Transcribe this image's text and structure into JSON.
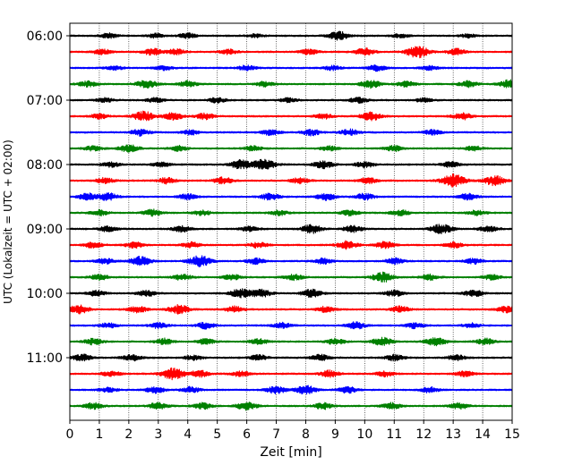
{
  "chart_data": {
    "type": "line",
    "title": "",
    "xlabel": "Zeit  [min]",
    "ylabel": "UTC (Lokalzeit = UTC + 02:00)",
    "xlim": [
      0,
      15
    ],
    "x_ticks": [
      0,
      1,
      2,
      3,
      4,
      5,
      6,
      7,
      8,
      9,
      10,
      11,
      12,
      13,
      14,
      15
    ],
    "x_tick_labels": [
      "0",
      "1",
      "2",
      "3",
      "4",
      "5",
      "6",
      "7",
      "8",
      "9",
      "10",
      "11",
      "12",
      "13",
      "14",
      "15"
    ],
    "y_tick_labels": [
      "06:00",
      "07:00",
      "08:00",
      "09:00",
      "10:00",
      "11:00"
    ],
    "y_tick_rows": [
      0,
      4,
      8,
      12,
      16,
      20
    ],
    "grid": "x-dotted",
    "trace_colors": [
      "#000000",
      "#ff0000",
      "#0000ff",
      "#008000"
    ],
    "traces": [
      {
        "start": "06:00",
        "bursts": [
          [
            1.3,
            0.8
          ],
          [
            2.9,
            0.7
          ],
          [
            4.0,
            0.8
          ],
          [
            6.3,
            0.6
          ],
          [
            9.1,
            1.4
          ],
          [
            11.2,
            0.6
          ],
          [
            13.5,
            0.6
          ]
        ]
      },
      {
        "start": "06:15",
        "bursts": [
          [
            1.1,
            0.9
          ],
          [
            2.8,
            1.1
          ],
          [
            3.6,
            0.9
          ],
          [
            5.4,
            0.8
          ],
          [
            8.1,
            0.9
          ],
          [
            10.0,
            1.2
          ],
          [
            11.8,
            1.9
          ],
          [
            13.1,
            1.0
          ]
        ]
      },
      {
        "start": "06:30",
        "bursts": [
          [
            1.5,
            0.7
          ],
          [
            3.2,
            0.8
          ],
          [
            6.0,
            0.8
          ],
          [
            8.9,
            0.7
          ],
          [
            10.4,
            0.9
          ],
          [
            12.2,
            0.7
          ]
        ]
      },
      {
        "start": "06:45",
        "bursts": [
          [
            0.6,
            0.9
          ],
          [
            2.6,
            1.4
          ],
          [
            4.0,
            1.0
          ],
          [
            6.6,
            0.8
          ],
          [
            10.2,
            1.3
          ],
          [
            11.4,
            0.9
          ],
          [
            13.5,
            1.0
          ],
          [
            14.9,
            1.3
          ]
        ]
      },
      {
        "start": "07:00",
        "bursts": [
          [
            1.2,
            0.7
          ],
          [
            2.9,
            0.8
          ],
          [
            5.0,
            0.8
          ],
          [
            7.4,
            0.7
          ],
          [
            9.8,
            0.9
          ],
          [
            12.0,
            0.7
          ]
        ]
      },
      {
        "start": "07:15",
        "bursts": [
          [
            1.0,
            0.8
          ],
          [
            2.5,
            1.6
          ],
          [
            3.5,
            1.2
          ],
          [
            4.6,
            1.0
          ],
          [
            8.6,
            0.8
          ],
          [
            10.2,
            1.4
          ],
          [
            13.3,
            1.1
          ]
        ]
      },
      {
        "start": "07:30",
        "bursts": [
          [
            2.4,
            1.1
          ],
          [
            4.1,
            0.8
          ],
          [
            6.8,
            0.9
          ],
          [
            8.2,
            1.0
          ],
          [
            9.5,
            1.0
          ],
          [
            12.3,
            0.8
          ]
        ]
      },
      {
        "start": "07:45",
        "bursts": [
          [
            0.8,
            0.8
          ],
          [
            2.0,
            1.2
          ],
          [
            3.7,
            0.9
          ],
          [
            6.2,
            0.8
          ],
          [
            8.8,
            0.8
          ],
          [
            11.0,
            0.9
          ],
          [
            13.7,
            0.8
          ]
        ]
      },
      {
        "start": "08:00",
        "bursts": [
          [
            1.4,
            0.8
          ],
          [
            3.1,
            0.8
          ],
          [
            5.8,
            1.5
          ],
          [
            6.6,
            1.7
          ],
          [
            8.6,
            1.2
          ],
          [
            10.0,
            1.0
          ],
          [
            12.9,
            0.9
          ]
        ]
      },
      {
        "start": "08:15",
        "bursts": [
          [
            1.2,
            0.9
          ],
          [
            3.3,
            1.0
          ],
          [
            5.2,
            1.1
          ],
          [
            7.8,
            0.9
          ],
          [
            10.1,
            1.0
          ],
          [
            13.0,
            2.1
          ],
          [
            14.4,
            1.6
          ]
        ]
      },
      {
        "start": "08:30",
        "bursts": [
          [
            0.6,
            1.1
          ],
          [
            1.3,
            1.2
          ],
          [
            4.0,
            0.9
          ],
          [
            6.8,
            1.1
          ],
          [
            8.7,
            1.1
          ],
          [
            10.0,
            1.1
          ],
          [
            13.5,
            1.0
          ]
        ]
      },
      {
        "start": "08:45",
        "bursts": [
          [
            1.0,
            0.9
          ],
          [
            2.8,
            1.1
          ],
          [
            4.5,
            0.8
          ],
          [
            7.1,
            0.8
          ],
          [
            9.5,
            0.9
          ],
          [
            11.2,
            1.0
          ],
          [
            13.8,
            0.8
          ]
        ]
      },
      {
        "start": "09:00",
        "bursts": [
          [
            1.3,
            0.9
          ],
          [
            3.8,
            1.0
          ],
          [
            6.1,
            0.9
          ],
          [
            8.2,
            1.4
          ],
          [
            9.6,
            1.1
          ],
          [
            12.6,
            1.6
          ],
          [
            14.2,
            1.0
          ]
        ]
      },
      {
        "start": "09:15",
        "bursts": [
          [
            0.8,
            0.9
          ],
          [
            2.2,
            1.0
          ],
          [
            4.1,
            0.9
          ],
          [
            6.4,
            0.9
          ],
          [
            9.4,
            1.3
          ],
          [
            10.7,
            1.1
          ],
          [
            13.0,
            0.9
          ]
        ]
      },
      {
        "start": "09:30",
        "bursts": [
          [
            1.2,
            0.9
          ],
          [
            2.4,
            1.5
          ],
          [
            4.4,
            1.8
          ],
          [
            6.3,
            0.9
          ],
          [
            8.6,
            0.9
          ],
          [
            11.0,
            1.0
          ],
          [
            13.7,
            0.9
          ]
        ]
      },
      {
        "start": "09:45",
        "bursts": [
          [
            1.0,
            0.9
          ],
          [
            3.8,
            1.0
          ],
          [
            5.5,
            0.9
          ],
          [
            7.6,
            0.9
          ],
          [
            10.6,
            1.6
          ],
          [
            12.2,
            0.9
          ],
          [
            14.3,
            0.8
          ]
        ]
      },
      {
        "start": "10:00",
        "bursts": [
          [
            0.9,
            0.9
          ],
          [
            2.6,
            1.0
          ],
          [
            5.8,
            1.5
          ],
          [
            6.5,
            1.2
          ],
          [
            8.2,
            1.3
          ],
          [
            11.0,
            1.0
          ],
          [
            13.7,
            1.1
          ]
        ]
      },
      {
        "start": "10:15",
        "bursts": [
          [
            0.3,
            1.4
          ],
          [
            2.3,
            1.0
          ],
          [
            3.7,
            1.5
          ],
          [
            5.6,
            1.0
          ],
          [
            8.7,
            1.0
          ],
          [
            11.2,
            1.0
          ],
          [
            14.8,
            1.1
          ]
        ]
      },
      {
        "start": "10:30",
        "bursts": [
          [
            1.3,
            0.8
          ],
          [
            3.0,
            0.9
          ],
          [
            4.6,
            1.0
          ],
          [
            7.2,
            0.9
          ],
          [
            9.7,
            1.1
          ],
          [
            11.7,
            0.9
          ],
          [
            13.6,
            0.8
          ]
        ]
      },
      {
        "start": "10:45",
        "bursts": [
          [
            0.8,
            1.0
          ],
          [
            3.2,
            1.0
          ],
          [
            4.6,
            0.9
          ],
          [
            6.4,
            0.9
          ],
          [
            9.0,
            1.0
          ],
          [
            10.6,
            1.3
          ],
          [
            12.4,
            1.4
          ],
          [
            14.1,
            1.0
          ]
        ]
      },
      {
        "start": "11:00",
        "bursts": [
          [
            0.4,
            1.1
          ],
          [
            2.1,
            1.0
          ],
          [
            4.2,
            0.8
          ],
          [
            6.4,
            0.9
          ],
          [
            8.5,
            1.0
          ],
          [
            11.0,
            1.0
          ],
          [
            13.1,
            0.9
          ]
        ]
      },
      {
        "start": "11:15",
        "bursts": [
          [
            1.4,
            0.9
          ],
          [
            3.5,
            1.9
          ],
          [
            4.4,
            1.1
          ],
          [
            5.8,
            0.9
          ],
          [
            8.8,
            1.1
          ],
          [
            10.7,
            0.9
          ],
          [
            13.4,
            0.9
          ]
        ]
      },
      {
        "start": "11:30",
        "bursts": [
          [
            1.3,
            0.8
          ],
          [
            2.9,
            1.0
          ],
          [
            4.1,
            1.0
          ],
          [
            7.0,
            1.2
          ],
          [
            8.0,
            1.4
          ],
          [
            9.4,
            1.1
          ],
          [
            12.2,
            0.9
          ]
        ]
      },
      {
        "start": "11:45",
        "bursts": [
          [
            0.8,
            1.0
          ],
          [
            3.0,
            1.1
          ],
          [
            4.5,
            1.0
          ],
          [
            6.0,
            1.4
          ],
          [
            8.6,
            1.0
          ],
          [
            10.9,
            1.0
          ],
          [
            13.2,
            1.0
          ]
        ]
      }
    ]
  }
}
